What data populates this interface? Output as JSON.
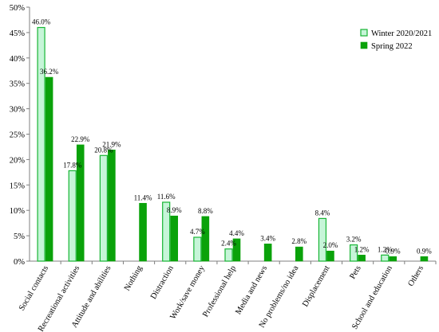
{
  "chart_data": {
    "type": "bar",
    "title": "",
    "xlabel": "",
    "ylabel": "",
    "ylim": [
      0,
      50
    ],
    "yticks": [
      0,
      5,
      10,
      15,
      20,
      25,
      30,
      35,
      40,
      45,
      50
    ],
    "ytick_format": "%",
    "grid": false,
    "legend_position": "top-right",
    "categories": [
      "Social contacts",
      "Recreational activities",
      "Attitude and abilities",
      "Nothing",
      "Distraction",
      "Work/save money",
      "Professional help",
      "Media and news",
      "No problems/no idea",
      "Displacement",
      "Pets",
      "School and education",
      "Others"
    ],
    "series": [
      {
        "name": "Winter 2020/2021",
        "fill": "#c6f5d8",
        "stroke": "#17b534",
        "values": [
          46.0,
          17.8,
          20.8,
          null,
          11.6,
          4.7,
          2.4,
          null,
          null,
          8.4,
          3.2,
          1.2,
          null
        ],
        "labels": [
          "46.0%",
          "17.8%",
          "20.8%",
          "",
          "11.6%",
          "4.7%",
          "2.4%",
          "",
          "",
          "8.4%",
          "3.2%",
          "1.2%",
          ""
        ]
      },
      {
        "name": "Spring 2022",
        "fill": "#0aa20a",
        "stroke": "#0aa20a",
        "values": [
          36.2,
          22.9,
          21.9,
          11.4,
          8.9,
          8.8,
          4.4,
          3.4,
          2.8,
          2.0,
          1.2,
          0.9,
          0.9
        ],
        "labels": [
          "36.2%",
          "22.9%",
          "21.9%",
          "11.4%",
          "8.9%",
          "8.8%",
          "4.4%",
          "3.4%",
          "2.8%",
          "2.0%",
          "1.2%",
          "0.9%",
          "0.9%"
        ]
      }
    ]
  }
}
